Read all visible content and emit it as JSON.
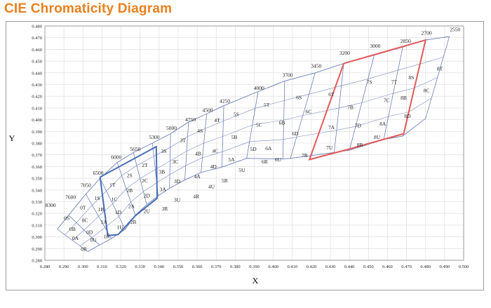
{
  "title": "CIE Chromaticity Diagram",
  "chart_data": {
    "type": "scatter",
    "xlabel": "X",
    "ylabel": "Y",
    "xlim": [
      0.28,
      0.5
    ],
    "ylim": [
      0.28,
      0.48
    ],
    "grid": true,
    "x_ticks": [
      "0.280",
      "0.290",
      "0.300",
      "0.310",
      "0.320",
      "0.330",
      "0.340",
      "0.350",
      "0.360",
      "0.370",
      "0.380",
      "0.390",
      "0.400",
      "0.410",
      "0.420",
      "0.430",
      "0.440",
      "0.450",
      "0.460",
      "0.470",
      "0.480",
      "0.490",
      "0.500"
    ],
    "y_ticks": [
      "0.280",
      "0.290",
      "0.300",
      "0.310",
      "0.320",
      "0.330",
      "0.340",
      "0.350",
      "0.360",
      "0.370",
      "0.380",
      "0.390",
      "0.400",
      "0.410",
      "0.420",
      "0.430",
      "0.440",
      "0.450",
      "0.460",
      "0.470",
      "0.480"
    ],
    "cct_lines": [
      {
        "label": "8300",
        "points": [
          [
            0.2865,
            0.3065
          ],
          [
            0.3025,
            0.2875
          ]
        ]
      },
      {
        "label": "7600",
        "points": [
          [
            0.2925,
            0.3185
          ],
          [
            0.3087,
            0.293
          ]
        ]
      },
      {
        "label": "7050",
        "points": [
          [
            0.3015,
            0.3365
          ],
          [
            0.3149,
            0.2985
          ]
        ]
      },
      {
        "label": "6500",
        "points": [
          [
            0.309,
            0.35
          ],
          [
            0.3222,
            0.3065
          ]
        ]
      },
      {
        "label": "6000",
        "points": [
          [
            0.318,
            0.3635
          ],
          [
            0.3275,
            0.3185
          ]
        ]
      },
      {
        "label": "5650",
        "points": [
          [
            0.3265,
            0.372
          ],
          [
            0.3335,
            0.3275
          ]
        ]
      },
      {
        "label": "5300",
        "points": [
          [
            0.3365,
            0.38
          ],
          [
            0.3395,
            0.335
          ]
        ]
      },
      {
        "label": "5000",
        "points": [
          [
            0.346,
            0.388
          ],
          [
            0.3455,
            0.3415
          ]
        ]
      },
      {
        "label": "4750",
        "points": [
          [
            0.3555,
            0.398
          ],
          [
            0.3535,
            0.3485
          ]
        ]
      },
      {
        "label": "4500",
        "points": [
          [
            0.365,
            0.405
          ],
          [
            0.362,
            0.355
          ]
        ]
      },
      {
        "label": "4250",
        "points": [
          [
            0.374,
            0.412
          ],
          [
            0.373,
            0.3595
          ]
        ]
      },
      {
        "label": "4000",
        "points": [
          [
            0.392,
            0.424
          ],
          [
            0.386,
            0.367
          ]
        ]
      },
      {
        "label": "3700",
        "points": [
          [
            0.406,
            0.433
          ],
          [
            0.405,
            0.3665
          ]
        ]
      },
      {
        "label": "3450",
        "points": [
          [
            0.422,
            0.44
          ],
          [
            0.409,
            0.367
          ]
        ]
      },
      {
        "label": "3200",
        "points": [
          [
            0.437,
            0.448
          ],
          [
            0.432,
            0.372
          ]
        ]
      },
      {
        "label": "3000",
        "points": [
          [
            0.453,
            0.455
          ],
          [
            0.44,
            0.374
          ]
        ]
      },
      {
        "label": "2850",
        "points": [
          [
            0.468,
            0.462
          ],
          [
            0.458,
            0.383
          ]
        ]
      },
      {
        "label": "2700",
        "points": [
          [
            0.48,
            0.468
          ],
          [
            0.468,
            0.386
          ]
        ]
      },
      {
        "label": "2550",
        "points": [
          [
            0.4925,
            0.471
          ],
          [
            0.48,
            0.401
          ]
        ]
      }
    ],
    "annotations": [
      {
        "text": "8300",
        "x": 0.283,
        "y": 0.3255
      },
      {
        "text": "7600",
        "x": 0.2935,
        "y": 0.3325
      },
      {
        "text": "7050",
        "x": 0.3015,
        "y": 0.3425
      },
      {
        "text": "6500",
        "x": 0.308,
        "y": 0.353
      },
      {
        "text": "6000",
        "x": 0.3175,
        "y": 0.3665
      },
      {
        "text": "5650",
        "x": 0.3275,
        "y": 0.3735
      },
      {
        "text": "5300",
        "x": 0.3375,
        "y": 0.3835
      },
      {
        "text": "5000",
        "x": 0.3465,
        "y": 0.3915
      },
      {
        "text": "4750",
        "x": 0.3565,
        "y": 0.3985
      },
      {
        "text": "4500",
        "x": 0.3655,
        "y": 0.4065
      },
      {
        "text": "4250",
        "x": 0.3745,
        "y": 0.4145
      },
      {
        "text": "4000",
        "x": 0.3925,
        "y": 0.4255
      },
      {
        "text": "3700",
        "x": 0.4075,
        "y": 0.4365
      },
      {
        "text": "3450",
        "x": 0.4225,
        "y": 0.4445
      },
      {
        "text": "3200",
        "x": 0.4375,
        "y": 0.4555
      },
      {
        "text": "3000",
        "x": 0.4535,
        "y": 0.4615
      },
      {
        "text": "2850",
        "x": 0.4695,
        "y": 0.4655
      },
      {
        "text": "2700",
        "x": 0.4805,
        "y": 0.4725
      },
      {
        "text": "2550",
        "x": 0.4955,
        "y": 0.4755
      }
    ],
    "bin_labels": [
      {
        "text": "0S",
        "x": 0.2915,
        "y": 0.316
      },
      {
        "text": "0T",
        "x": 0.3,
        "y": 0.325
      },
      {
        "text": "0B",
        "x": 0.2945,
        "y": 0.3065
      },
      {
        "text": "0C",
        "x": 0.301,
        "y": 0.314
      },
      {
        "text": "0A",
        "x": 0.296,
        "y": 0.299
      },
      {
        "text": "0D",
        "x": 0.3035,
        "y": 0.304
      },
      {
        "text": "0R",
        "x": 0.3005,
        "y": 0.2895
      },
      {
        "text": "0U",
        "x": 0.3055,
        "y": 0.2975
      },
      {
        "text": "1S",
        "x": 0.3075,
        "y": 0.333
      },
      {
        "text": "1T",
        "x": 0.3155,
        "y": 0.3445
      },
      {
        "text": "1B",
        "x": 0.3095,
        "y": 0.3235
      },
      {
        "text": "1C",
        "x": 0.3165,
        "y": 0.332
      },
      {
        "text": "1A",
        "x": 0.311,
        "y": 0.3125
      },
      {
        "text": "1D",
        "x": 0.3185,
        "y": 0.321
      },
      {
        "text": "1R",
        "x": 0.3125,
        "y": 0.3005
      },
      {
        "text": "1U",
        "x": 0.3195,
        "y": 0.308
      },
      {
        "text": "2S",
        "x": 0.3245,
        "y": 0.3525
      },
      {
        "text": "2T",
        "x": 0.3325,
        "y": 0.361
      },
      {
        "text": "2B",
        "x": 0.3245,
        "y": 0.3395
      },
      {
        "text": "2C",
        "x": 0.3325,
        "y": 0.348
      },
      {
        "text": "2A",
        "x": 0.3255,
        "y": 0.326
      },
      {
        "text": "2D",
        "x": 0.3335,
        "y": 0.335
      },
      {
        "text": "2R",
        "x": 0.3265,
        "y": 0.3125
      },
      {
        "text": "2U",
        "x": 0.3335,
        "y": 0.322
      },
      {
        "text": "3S",
        "x": 0.3425,
        "y": 0.373
      },
      {
        "text": "3T",
        "x": 0.3525,
        "y": 0.3825
      },
      {
        "text": "3C",
        "x": 0.3485,
        "y": 0.364
      },
      {
        "text": "3B",
        "x": 0.3415,
        "y": 0.3555
      },
      {
        "text": "3D",
        "x": 0.3495,
        "y": 0.3475
      },
      {
        "text": "3A",
        "x": 0.342,
        "y": 0.3405
      },
      {
        "text": "3U",
        "x": 0.3495,
        "y": 0.3315
      },
      {
        "text": "3R",
        "x": 0.343,
        "y": 0.324
      },
      {
        "text": "4S",
        "x": 0.3615,
        "y": 0.3905
      },
      {
        "text": "4T",
        "x": 0.3705,
        "y": 0.3995
      },
      {
        "text": "4B",
        "x": 0.3605,
        "y": 0.371
      },
      {
        "text": "4C",
        "x": 0.3695,
        "y": 0.3735
      },
      {
        "text": "4A",
        "x": 0.36,
        "y": 0.3515
      },
      {
        "text": "4D",
        "x": 0.3685,
        "y": 0.36
      },
      {
        "text": "4R",
        "x": 0.3595,
        "y": 0.3345
      },
      {
        "text": "4U",
        "x": 0.3675,
        "y": 0.343
      },
      {
        "text": "5S",
        "x": 0.3805,
        "y": 0.4045
      },
      {
        "text": "5T",
        "x": 0.3965,
        "y": 0.4125
      },
      {
        "text": "5B",
        "x": 0.3795,
        "y": 0.385
      },
      {
        "text": "5C",
        "x": 0.3925,
        "y": 0.3955
      },
      {
        "text": "5A",
        "x": 0.378,
        "y": 0.366
      },
      {
        "text": "5D",
        "x": 0.3895,
        "y": 0.375
      },
      {
        "text": "5R",
        "x": 0.3745,
        "y": 0.348
      },
      {
        "text": "5U",
        "x": 0.3835,
        "y": 0.357
      },
      {
        "text": "6S",
        "x": 0.4135,
        "y": 0.419
      },
      {
        "text": "6T",
        "x": 0.4305,
        "y": 0.4215
      },
      {
        "text": "6B",
        "x": 0.4045,
        "y": 0.3975
      },
      {
        "text": "6C",
        "x": 0.4185,
        "y": 0.407
      },
      {
        "text": "6A",
        "x": 0.3975,
        "y": 0.3755
      },
      {
        "text": "6D",
        "x": 0.4115,
        "y": 0.388
      },
      {
        "text": "6R",
        "x": 0.3955,
        "y": 0.364
      },
      {
        "text": "6U",
        "x": 0.4025,
        "y": 0.366
      },
      {
        "text": "7S",
        "x": 0.4505,
        "y": 0.432
      },
      {
        "text": "7T",
        "x": 0.4635,
        "y": 0.432
      },
      {
        "text": "7B",
        "x": 0.4405,
        "y": 0.4105
      },
      {
        "text": "7C",
        "x": 0.4595,
        "y": 0.4165
      },
      {
        "text": "7A",
        "x": 0.4305,
        "y": 0.3935
      },
      {
        "text": "7D",
        "x": 0.4445,
        "y": 0.395
      },
      {
        "text": "7R",
        "x": 0.4165,
        "y": 0.3695
      },
      {
        "text": "7U",
        "x": 0.4295,
        "y": 0.376
      },
      {
        "text": "8S",
        "x": 0.4725,
        "y": 0.436
      },
      {
        "text": "8T",
        "x": 0.4875,
        "y": 0.4435
      },
      {
        "text": "8B",
        "x": 0.4685,
        "y": 0.4185
      },
      {
        "text": "8C",
        "x": 0.4805,
        "y": 0.425
      },
      {
        "text": "8A",
        "x": 0.4575,
        "y": 0.3965
      },
      {
        "text": "8D",
        "x": 0.4705,
        "y": 0.403
      },
      {
        "text": "8R",
        "x": 0.4455,
        "y": 0.3785
      },
      {
        "text": "8U",
        "x": 0.4545,
        "y": 0.385
      }
    ],
    "highlight_regions": [
      {
        "color": "#4a6db5",
        "points": [
          [
            0.309,
            0.351
          ],
          [
            0.3385,
            0.377
          ],
          [
            0.339,
            0.333
          ],
          [
            0.3275,
            0.318
          ],
          [
            0.3185,
            0.302
          ],
          [
            0.313,
            0.301
          ],
          [
            0.309,
            0.351
          ]
        ]
      },
      {
        "color": "#e05a5a",
        "points": [
          [
            0.437,
            0.448
          ],
          [
            0.48,
            0.468
          ],
          [
            0.4685,
            0.388
          ],
          [
            0.44,
            0.375
          ],
          [
            0.419,
            0.366
          ],
          [
            0.437,
            0.448
          ]
        ]
      }
    ]
  }
}
